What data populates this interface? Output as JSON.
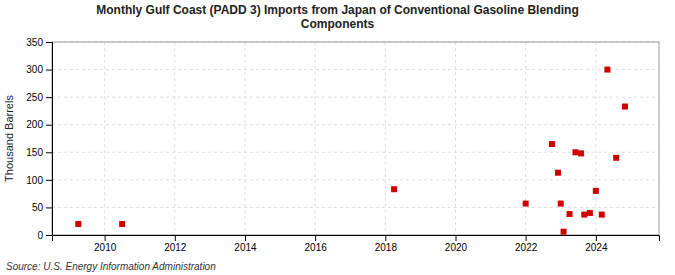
{
  "chart_data": {
    "type": "scatter",
    "title": "Monthly Gulf Coast (PADD 3) Imports from Japan of Conventional Gasoline Blending\nComponents",
    "ylabel": "Thousand Barrels",
    "source": "Source: U.S. Energy Information Administration",
    "color": "#cc0000",
    "marker": "square",
    "grid": true,
    "xlim": [
      2008.5,
      2025.8
    ],
    "xticks": [
      2010,
      2012,
      2014,
      2016,
      2018,
      2020,
      2022,
      2024
    ],
    "ylim": [
      0,
      350
    ],
    "yticks": [
      0,
      50,
      100,
      150,
      200,
      250,
      300,
      350
    ],
    "x": [
      2009.25,
      2010.5,
      2018.25,
      2022.0,
      2022.75,
      2022.92,
      2023.0,
      2023.08,
      2023.25,
      2023.42,
      2023.58,
      2023.67,
      2023.83,
      2024.0,
      2024.17,
      2024.33,
      2024.58,
      2024.83
    ],
    "values": [
      20,
      20,
      83,
      57,
      165,
      113,
      57,
      6,
      38,
      150,
      148,
      37,
      40,
      80,
      37,
      300,
      140,
      233
    ]
  }
}
